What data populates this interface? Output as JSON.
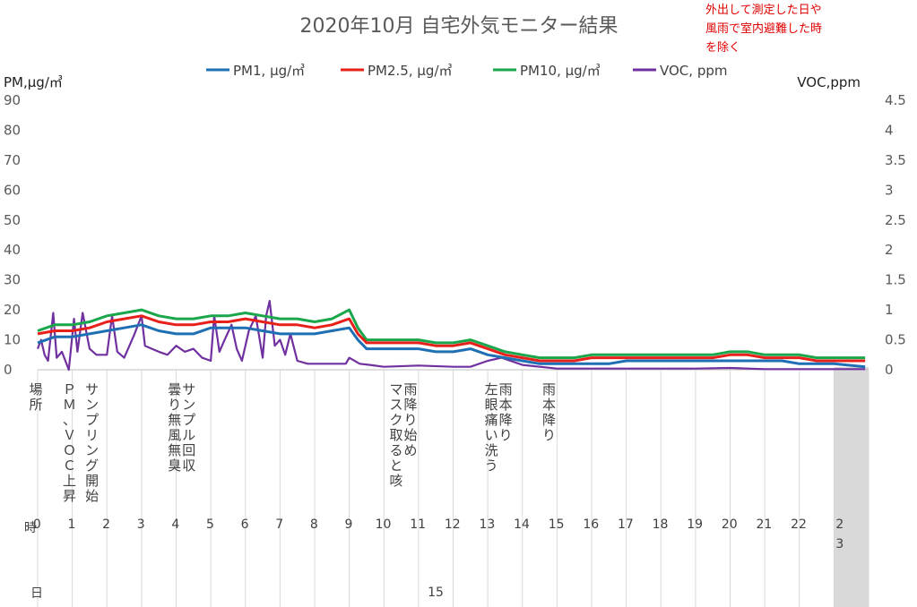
{
  "chart_data": {
    "type": "line",
    "title": "2020年10月 自宅外気モニター結果",
    "note_lines": [
      "外出して測定した日や",
      "風雨で室内避難した時",
      "を除く"
    ],
    "y_left_label": "PM,μg/㎥",
    "y_right_label": "VOC,ppm",
    "ylim_left": [
      0,
      90
    ],
    "ylim_right": [
      0,
      4.5
    ],
    "y_left_ticks": [
      "0",
      "10",
      "20",
      "30",
      "40",
      "50",
      "60",
      "70",
      "80",
      "90"
    ],
    "y_right_ticks": [
      "0",
      "0.5",
      "1",
      "1.5",
      "2",
      "2.5",
      "3",
      "3.5",
      "4",
      "4.5"
    ],
    "row_labels": {
      "place": "場所",
      "hour": "時",
      "day": "日"
    },
    "day_value": "15",
    "grid": true,
    "legend_position": "top",
    "series": [
      {
        "name": "PM1, μg/㎥",
        "color": "#1f6fb4",
        "axis": "left",
        "x": [
          0,
          0.5,
          1,
          1.5,
          2,
          2.5,
          3,
          3.5,
          4,
          4.5,
          5,
          5.5,
          6,
          6.5,
          7,
          7.5,
          8,
          8.5,
          9,
          9.25,
          9.5,
          10,
          10.5,
          11,
          11.5,
          12,
          12.5,
          13,
          13.5,
          14,
          14.5,
          15,
          15.5,
          16,
          16.5,
          17,
          17.5,
          18,
          18.5,
          19,
          19.5,
          20,
          20.5,
          21,
          21.5,
          22,
          22.5,
          23,
          23.9
        ],
        "values": [
          9,
          11,
          11,
          12,
          13,
          14,
          15,
          13,
          12,
          12,
          14,
          14,
          14,
          13,
          12,
          12,
          12,
          13,
          14,
          10,
          7,
          7,
          7,
          7,
          6,
          6,
          7,
          5,
          4,
          3,
          2,
          2,
          2,
          2,
          2,
          3,
          3,
          3,
          3,
          3,
          3,
          3,
          3,
          3,
          3,
          2,
          2,
          2,
          1
        ]
      },
      {
        "name": "PM2.5, μg/㎥",
        "color": "#e8201a",
        "axis": "left",
        "x": [
          0,
          0.5,
          1,
          1.5,
          2,
          2.5,
          3,
          3.5,
          4,
          4.5,
          5,
          5.5,
          6,
          6.5,
          7,
          7.5,
          8,
          8.5,
          9,
          9.25,
          9.5,
          10,
          10.5,
          11,
          11.5,
          12,
          12.5,
          13,
          13.5,
          14,
          14.5,
          15,
          15.5,
          16,
          16.5,
          17,
          17.5,
          18,
          18.5,
          19,
          19.5,
          20,
          20.5,
          21,
          21.5,
          22,
          22.5,
          23,
          23.9
        ],
        "values": [
          12,
          13,
          13,
          14,
          16,
          17,
          18,
          16,
          15,
          15,
          16,
          16,
          17,
          16,
          15,
          15,
          14,
          15,
          17,
          12,
          9,
          9,
          9,
          9,
          8,
          8,
          9,
          7,
          5,
          4,
          3,
          3,
          3,
          4,
          4,
          4,
          4,
          4,
          4,
          4,
          4,
          5,
          5,
          4,
          4,
          4,
          3,
          3,
          3
        ]
      },
      {
        "name": "PM10, μg/㎥",
        "color": "#1aa64a",
        "axis": "left",
        "x": [
          0,
          0.5,
          1,
          1.5,
          2,
          2.5,
          3,
          3.5,
          4,
          4.5,
          5,
          5.5,
          6,
          6.5,
          7,
          7.5,
          8,
          8.5,
          9,
          9.25,
          9.5,
          10,
          10.5,
          11,
          11.5,
          12,
          12.5,
          13,
          13.5,
          14,
          14.5,
          15,
          15.5,
          16,
          16.5,
          17,
          17.5,
          18,
          18.5,
          19,
          19.5,
          20,
          20.5,
          21,
          21.5,
          22,
          22.5,
          23,
          23.9
        ],
        "values": [
          13,
          15,
          15,
          16,
          18,
          19,
          20,
          18,
          17,
          17,
          18,
          18,
          19,
          18,
          17,
          17,
          16,
          17,
          20,
          14,
          10,
          10,
          10,
          10,
          9,
          9,
          10,
          8,
          6,
          5,
          4,
          4,
          4,
          5,
          5,
          5,
          5,
          5,
          5,
          5,
          5,
          6,
          6,
          5,
          5,
          5,
          4,
          4,
          4
        ]
      },
      {
        "name": "VOC, ppm",
        "color": "#7030a0",
        "axis": "right",
        "x": [
          0,
          0.1,
          0.2,
          0.3,
          0.45,
          0.55,
          0.7,
          0.9,
          1.05,
          1.15,
          1.3,
          1.5,
          1.7,
          2.0,
          2.15,
          2.3,
          2.5,
          2.8,
          3.0,
          3.1,
          3.3,
          3.5,
          3.75,
          4.0,
          4.25,
          4.5,
          4.75,
          5.0,
          5.1,
          5.25,
          5.4,
          5.6,
          5.75,
          5.9,
          6.1,
          6.3,
          6.5,
          6.6,
          6.7,
          6.85,
          7.0,
          7.15,
          7.3,
          7.5,
          7.8,
          8.5,
          8.9,
          9.0,
          9.3,
          9.6,
          10.0,
          11.0,
          12.0,
          12.5,
          13.0,
          13.4,
          14.0,
          15.0,
          16.0,
          17.0,
          18.0,
          19.0,
          20.0,
          21.0,
          22.0,
          23.0,
          23.9
        ],
        "values": [
          0.35,
          0.5,
          0.25,
          0.15,
          0.95,
          0.2,
          0.3,
          0.0,
          0.85,
          0.3,
          0.95,
          0.35,
          0.25,
          0.25,
          0.9,
          0.3,
          0.2,
          0.6,
          0.9,
          0.4,
          0.35,
          0.3,
          0.25,
          0.4,
          0.3,
          0.35,
          0.2,
          0.15,
          0.9,
          0.3,
          0.5,
          0.75,
          0.35,
          0.15,
          0.65,
          0.9,
          0.2,
          0.9,
          1.15,
          0.4,
          0.5,
          0.25,
          0.6,
          0.15,
          0.1,
          0.1,
          0.1,
          0.2,
          0.1,
          0.08,
          0.05,
          0.07,
          0.05,
          0.05,
          0.15,
          0.2,
          0.08,
          0.02,
          0.02,
          0.02,
          0.02,
          0.02,
          0.03,
          0.01,
          0.01,
          0.01,
          0.01
        ]
      }
    ],
    "hour_categories": [
      "0",
      "1",
      "2",
      "3",
      "4",
      "5",
      "6",
      "7",
      "8",
      "9",
      "10",
      "11",
      "12",
      "13",
      "14",
      "15",
      "16",
      "17",
      "18",
      "19",
      "20",
      "21",
      "22",
      "23"
    ],
    "annotations": [
      {
        "hour": 0.35,
        "lines": [
          "ＰＭ、ＶＯＣ上昇"
        ]
      },
      {
        "hour": 1.0,
        "lines": [
          "サンプリング開始"
        ]
      },
      {
        "hour": 3.8,
        "lines": [
          "サンプル回収",
          "曇り無風無臭"
        ]
      },
      {
        "hour": 10.2,
        "lines": [
          "雨降り始め",
          "マスク取ると咳"
        ]
      },
      {
        "hour": 12.95,
        "lines": [
          "雨本降り",
          "左眼痛い洗う"
        ]
      },
      {
        "hour": 14.2,
        "lines": [
          "雨本降り"
        ]
      }
    ],
    "shaded_hour": 23
  }
}
